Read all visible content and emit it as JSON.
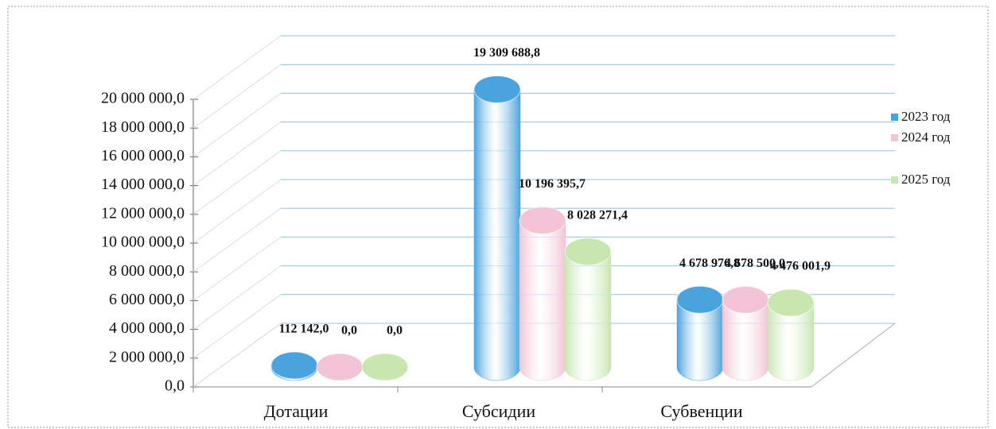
{
  "chart_data": {
    "type": "bar3d",
    "categories": [
      "Дотации",
      "Субсидии",
      "Субвенции"
    ],
    "series": [
      {
        "name": "2023 год",
        "color": "#4aa3dd",
        "values": [
          112142.0,
          19309688.8,
          4678976.8
        ],
        "value_labels": [
          "112 142,0",
          "19 309 688,8",
          "4 678 976,8"
        ]
      },
      {
        "name": "2024 год",
        "color": "#f2c4d6",
        "values": [
          0,
          10196395.7,
          4678500.0
        ],
        "value_labels": [
          "0,0",
          "10 196 395,7",
          "4 678 500,0"
        ]
      },
      {
        "name": "2025 год",
        "color": "#c8e6b0",
        "values": [
          0,
          8028271.4,
          4476001.9
        ],
        "value_labels": [
          "0,0",
          "8 028 271,4",
          "4 476 001,9"
        ]
      }
    ],
    "ylim": [
      0,
      20000000
    ],
    "yticks": [
      {
        "value": 0,
        "label": "0,0"
      },
      {
        "value": 2000000,
        "label": "2 000 000,0"
      },
      {
        "value": 4000000,
        "label": "4 000 000,0"
      },
      {
        "value": 6000000,
        "label": "6 000 000,0"
      },
      {
        "value": 8000000,
        "label": "8 000 000,0"
      },
      {
        "value": 10000000,
        "label": "10 000 000,0"
      },
      {
        "value": 12000000,
        "label": "12 000 000,0"
      },
      {
        "value": 14000000,
        "label": "14 000 000,0"
      },
      {
        "value": 16000000,
        "label": "16 000 000,0"
      },
      {
        "value": 18000000,
        "label": "18 000 000,0"
      },
      {
        "value": 20000000,
        "label": "20 000 000,0"
      }
    ],
    "grid": true,
    "legend": "right"
  }
}
